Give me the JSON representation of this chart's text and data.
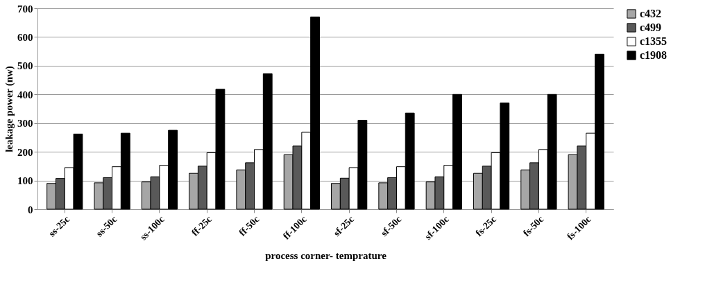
{
  "chart_data": {
    "type": "bar",
    "xlabel": "process corner- temprature",
    "ylabel": "leakage power (nw)",
    "categories": [
      "ss-25c",
      "ss-50c",
      "ss-100c",
      "ff-25c",
      "ff-50c",
      "ff-100c",
      "sf-25c",
      "sf-50c",
      "sf-100c",
      "fs-25c",
      "fs-50c",
      "fs-100c"
    ],
    "series": [
      {
        "name": "c432",
        "color": "#a6a6a6",
        "values": [
          90,
          92,
          95,
          125,
          137,
          190,
          90,
          92,
          95,
          125,
          137,
          190
        ]
      },
      {
        "name": "c499",
        "color": "#595959",
        "values": [
          107,
          110,
          113,
          150,
          162,
          220,
          108,
          110,
          113,
          150,
          162,
          220
        ]
      },
      {
        "name": "c1355",
        "color": "#ffffff",
        "values": [
          145,
          148,
          153,
          197,
          208,
          268,
          145,
          148,
          153,
          197,
          208,
          265
        ]
      },
      {
        "name": "c1908",
        "color": "#000000",
        "values": [
          262,
          265,
          275,
          418,
          472,
          670,
          310,
          335,
          400,
          370,
          400,
          540
        ]
      }
    ],
    "ylim": [
      0,
      700
    ],
    "yticks": [
      0,
      100,
      200,
      300,
      400,
      500,
      600,
      700
    ],
    "grid": "y",
    "legend": "right"
  }
}
